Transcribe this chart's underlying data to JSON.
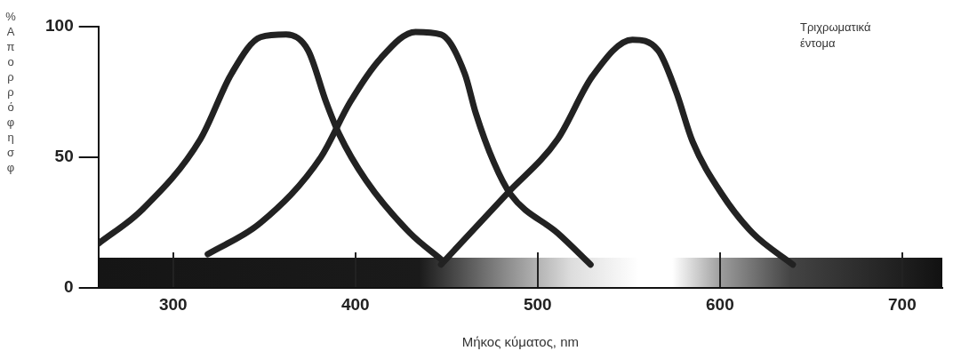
{
  "chart_data": {
    "type": "line",
    "xlabel": "Μήκος κύματος, nm",
    "ylabel": "%Απορρόφησφ",
    "annotations": [
      "Τριχρωματικά\nέντομα"
    ],
    "xlim": [
      259,
      722
    ],
    "xticks": [
      300,
      400,
      500,
      600,
      700
    ],
    "ylim": [
      0,
      100
    ],
    "yticks": [
      0,
      50,
      100
    ],
    "grid": false,
    "legend": false,
    "marker": "none",
    "line_style": "solid",
    "series": [
      {
        "color": "#222222",
        "x": [
          259,
          283,
          315,
          332,
          348,
          362,
          374,
          384,
          391,
          406,
          430,
          447
        ],
        "values": [
          17,
          30,
          57,
          82,
          96,
          97,
          91,
          71,
          59,
          41,
          21,
          11
        ]
      },
      {
        "color": "#222222",
        "x": [
          319,
          348,
          381,
          397,
          414,
          433,
          447,
          460,
          466,
          476,
          485,
          511,
          529
        ],
        "values": [
          13,
          25,
          50,
          71,
          88,
          98,
          97,
          82,
          67,
          48,
          36,
          21,
          9
        ]
      },
      {
        "color": "#222222",
        "x": [
          447,
          483,
          511,
          530,
          552,
          566,
          576,
          585,
          601,
          618,
          640
        ],
        "values": [
          9,
          36,
          57,
          81,
          95,
          91,
          75,
          56,
          36,
          21,
          9
        ]
      }
    ]
  }
}
